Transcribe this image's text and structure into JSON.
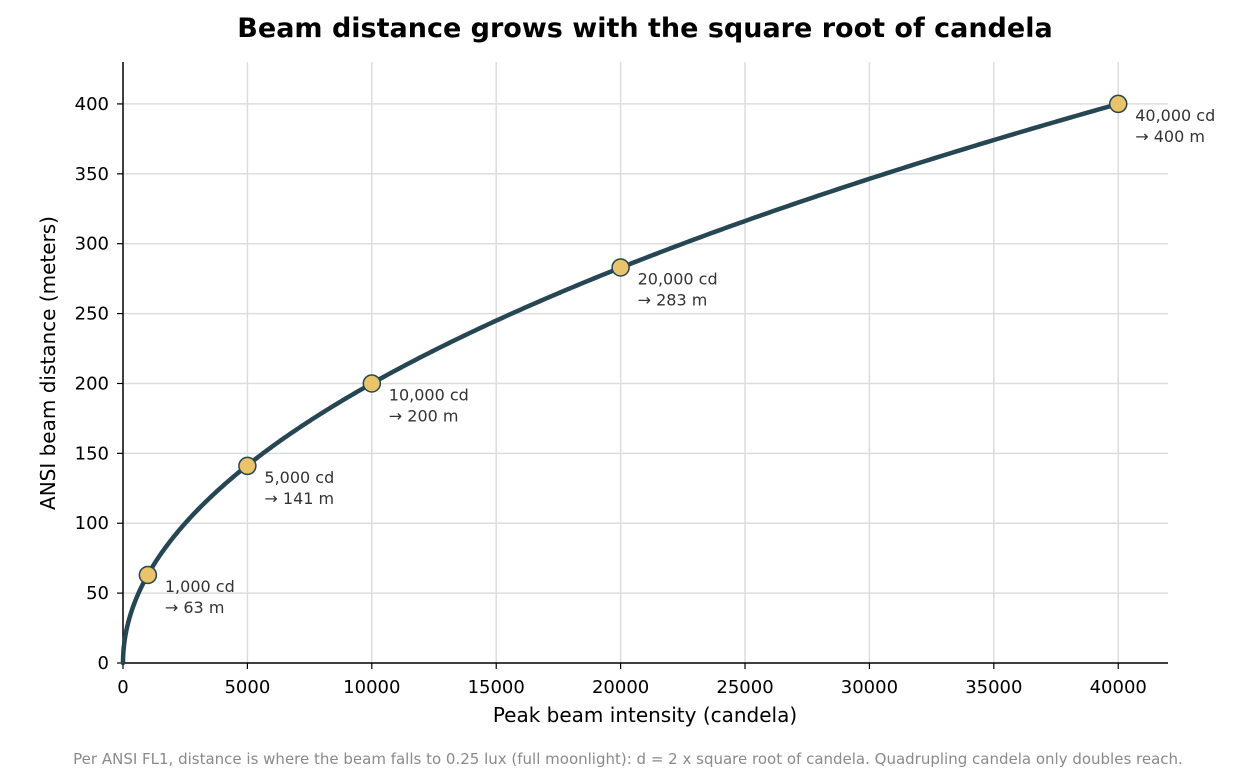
{
  "chart_data": {
    "type": "line",
    "title": "Beam distance grows with the square root of candela",
    "xlabel": "Peak beam intensity (candela)",
    "ylabel": "ANSI beam distance (meters)",
    "xlim": [
      0,
      42000
    ],
    "ylim": [
      0,
      430
    ],
    "xticks": [
      0,
      5000,
      10000,
      15000,
      20000,
      25000,
      30000,
      35000,
      40000
    ],
    "yticks": [
      0,
      50,
      100,
      150,
      200,
      250,
      300,
      350,
      400
    ],
    "grid": true,
    "curve": {
      "formula": "d = 2 x sqrt(candela)",
      "x_range": [
        0,
        40000
      ],
      "color": "#264653"
    },
    "points": [
      {
        "x": 1000,
        "y": 63,
        "label_line1": "1,000 cd",
        "label_line2": "→ 63 m"
      },
      {
        "x": 5000,
        "y": 141,
        "label_line1": "5,000 cd",
        "label_line2": "→ 141 m"
      },
      {
        "x": 10000,
        "y": 200,
        "label_line1": "10,000 cd",
        "label_line2": "→ 200 m"
      },
      {
        "x": 20000,
        "y": 283,
        "label_line1": "20,000 cd",
        "label_line2": "→ 283 m"
      },
      {
        "x": 40000,
        "y": 400,
        "label_line1": "40,000 cd",
        "label_line2": "→ 400 m"
      }
    ],
    "point_fill": "#e9c46a",
    "point_stroke": "#264653",
    "footnote": "Per ANSI FL1, distance is where the beam falls to 0.25 lux (full moonlight): d = 2 x square root of candela. Quadrupling candela only doubles reach."
  }
}
